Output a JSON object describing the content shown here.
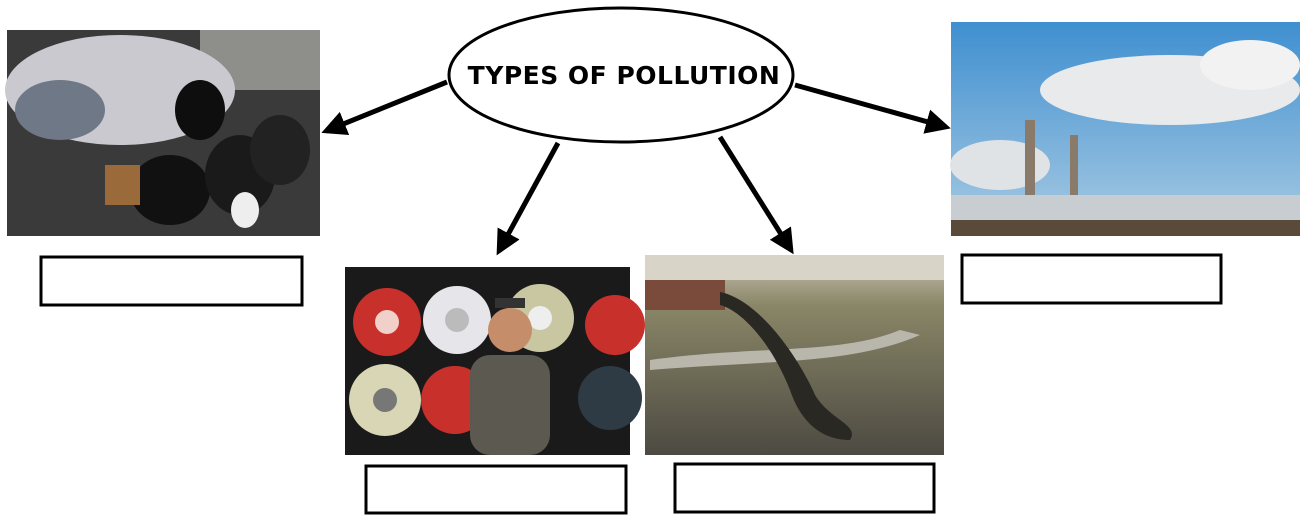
{
  "title": "TYPES OF POLLUTION"
}
